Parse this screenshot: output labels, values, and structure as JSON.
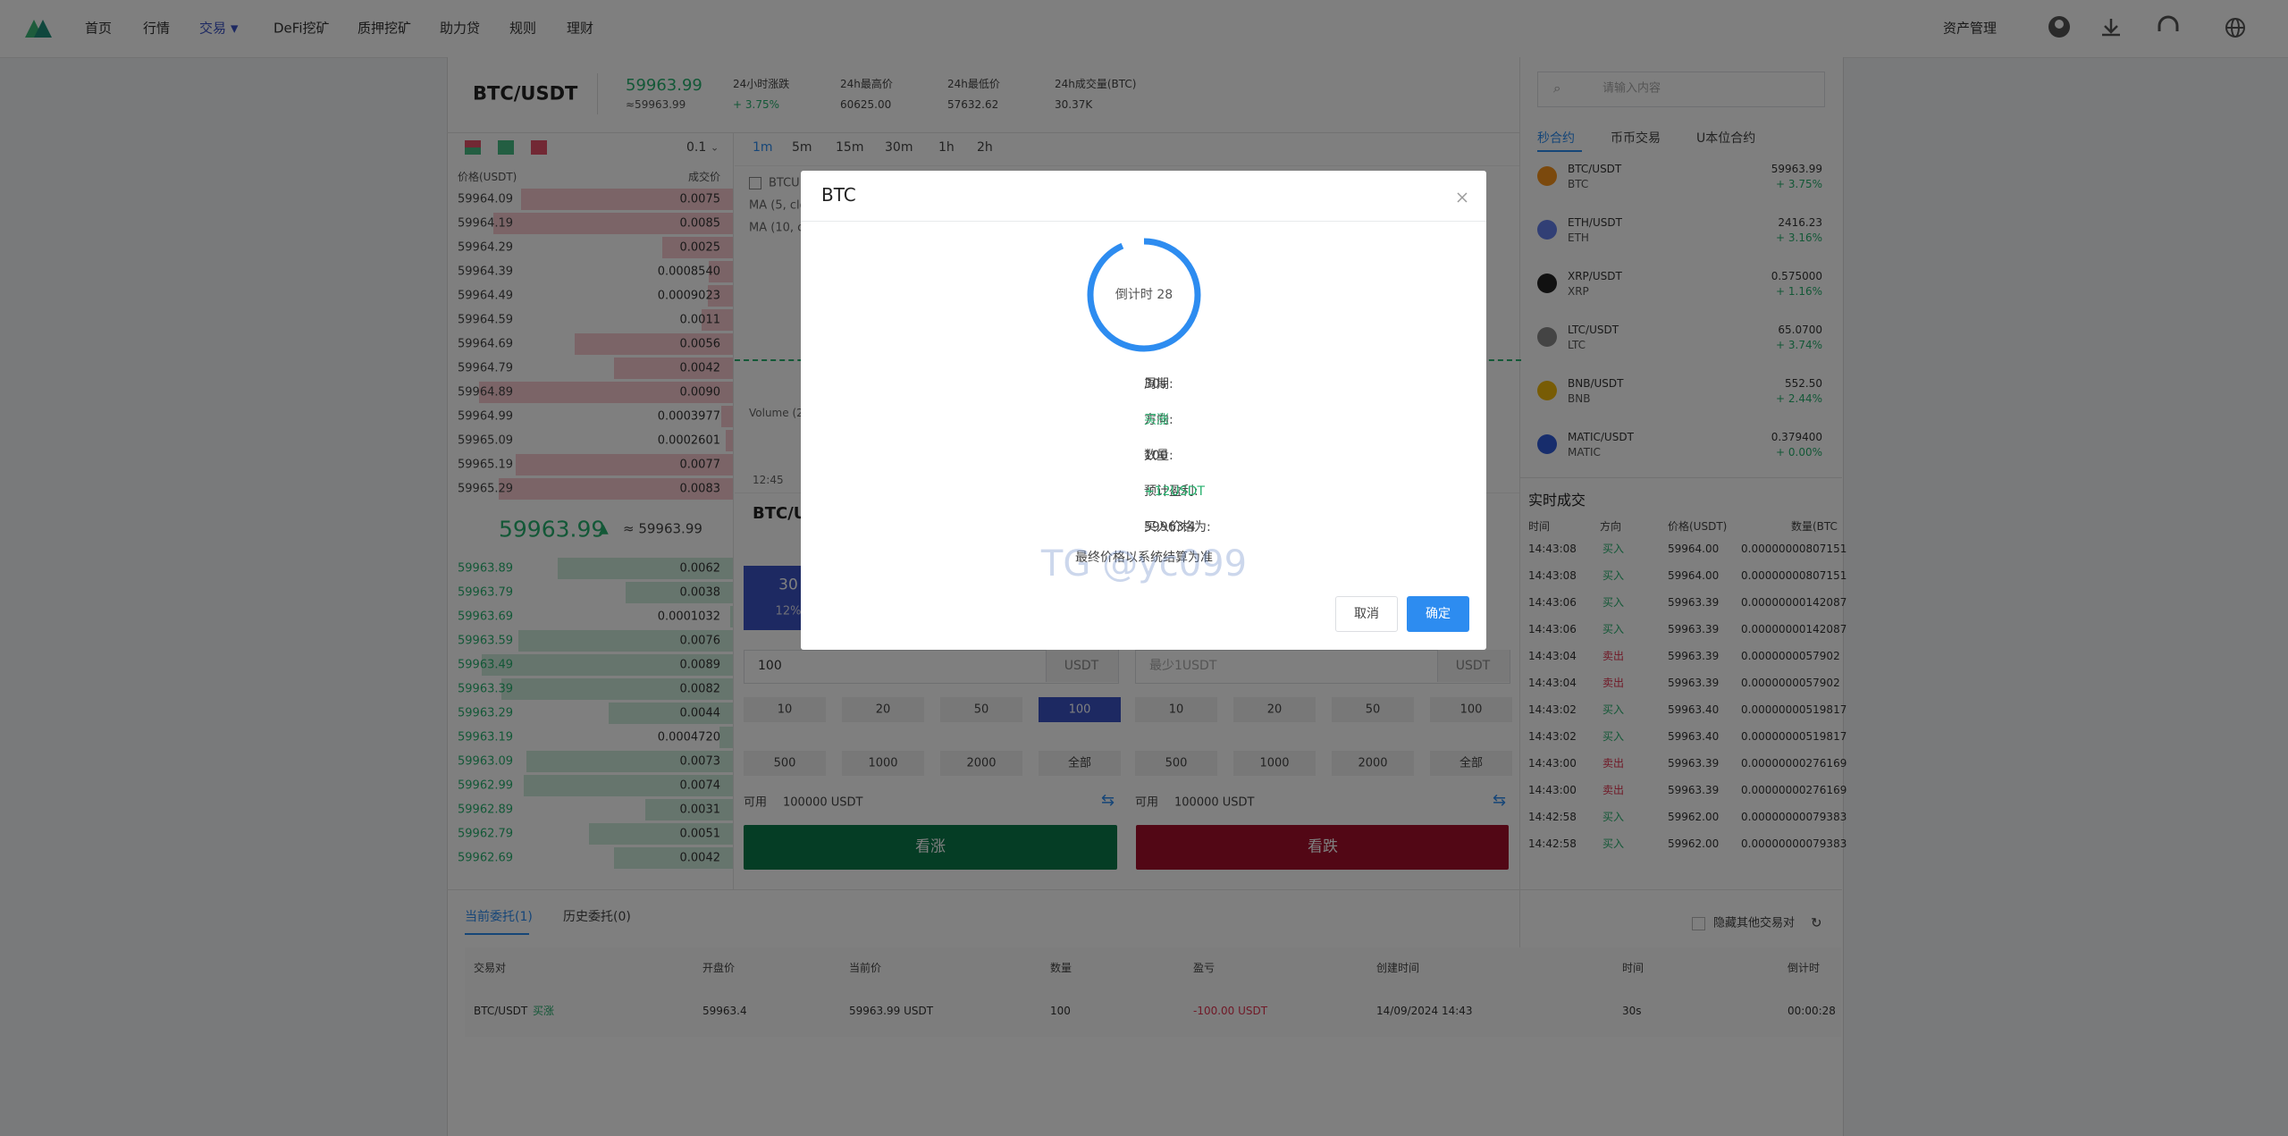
{
  "nav": {
    "items": [
      "首页",
      "行情",
      "交易",
      "DeFi挖矿",
      "质押挖矿",
      "助力贷",
      "规则",
      "理财"
    ],
    "asset": "资产管理"
  },
  "ticker": {
    "pair": "BTC/USDT",
    "price": "59963.99",
    "price_sub": "≈59963.99",
    "stats": [
      {
        "label": "24小时涨跌",
        "value": "+ 3.75%"
      },
      {
        "label": "24h最高价",
        "value": "60625.00"
      },
      {
        "label": "24h最低价",
        "value": "57632.62"
      },
      {
        "label": "24h成交量(BTC)",
        "value": "30.37K"
      }
    ]
  },
  "orderbook": {
    "precision": "0.1",
    "headers": [
      "价格(USDT)",
      "成交价"
    ],
    "asks": [
      [
        "59964.09",
        "0.0075"
      ],
      [
        "59964.19",
        "0.0085"
      ],
      [
        "59964.29",
        "0.0025"
      ],
      [
        "59964.39",
        "0.0008540"
      ],
      [
        "59964.49",
        "0.0009023"
      ],
      [
        "59964.59",
        "0.0011"
      ],
      [
        "59964.69",
        "0.0056"
      ],
      [
        "59964.79",
        "0.0042"
      ],
      [
        "59964.89",
        "0.0090"
      ],
      [
        "59964.99",
        "0.0003977"
      ],
      [
        "59965.09",
        "0.0002601"
      ],
      [
        "59965.19",
        "0.0077"
      ],
      [
        "59965.29",
        "0.0083"
      ]
    ],
    "last_price": "59963.99",
    "last_price_sub": "≈ 59963.99",
    "bids": [
      [
        "59963.89",
        "0.0062"
      ],
      [
        "59963.79",
        "0.0038"
      ],
      [
        "59963.69",
        "0.0001032"
      ],
      [
        "59963.59",
        "0.0076"
      ],
      [
        "59963.49",
        "0.0089"
      ],
      [
        "59963.39",
        "0.0082"
      ],
      [
        "59963.29",
        "0.0044"
      ],
      [
        "59963.19",
        "0.0004720"
      ],
      [
        "59963.09",
        "0.0073"
      ],
      [
        "59962.99",
        "0.0074"
      ],
      [
        "59962.89",
        "0.0031"
      ],
      [
        "59962.79",
        "0.0051"
      ],
      [
        "59962.69",
        "0.0042"
      ]
    ]
  },
  "chart": {
    "intervals": [
      "1m",
      "5m",
      "15m",
      "30m",
      "1h",
      "2h"
    ],
    "legend": [
      "BTCU",
      "MA (5, clo",
      "MA (10, cl"
    ],
    "volume": "Volume (2",
    "time": "12:45"
  },
  "trade": {
    "title": "BTC/U",
    "period": "30",
    "period_rate": "12%",
    "amount": "100",
    "unit": "USDT",
    "placeholder": "最少1USDT",
    "quick": [
      "10",
      "20",
      "50",
      "100",
      "500",
      "1000",
      "2000",
      "全部"
    ],
    "available_label": "可用",
    "available": "100000 USDT",
    "buy": "看涨",
    "sell": "看跌"
  },
  "markets": {
    "search": "请输入内容",
    "tabs": [
      "秒合约",
      "币币交易",
      "U本位合约"
    ],
    "rows": [
      {
        "pair": "BTC/USDT",
        "base": "BTC",
        "price": "59963.99",
        "change": "+ 3.75%"
      },
      {
        "pair": "ETH/USDT",
        "base": "ETH",
        "price": "2416.23",
        "change": "+ 3.16%"
      },
      {
        "pair": "XRP/USDT",
        "base": "XRP",
        "price": "0.575000",
        "change": "+ 1.16%"
      },
      {
        "pair": "LTC/USDT",
        "base": "LTC",
        "price": "65.0700",
        "change": "+ 3.74%"
      },
      {
        "pair": "BNB/USDT",
        "base": "BNB",
        "price": "552.50",
        "change": "+ 2.44%"
      },
      {
        "pair": "MATIC/USDT",
        "base": "MATIC",
        "price": "0.379400",
        "change": "+ 0.00%"
      }
    ]
  },
  "trades": {
    "title": "实时成交",
    "headers": [
      "时间",
      "方向",
      "价格(USDT)",
      "数量(BTC"
    ],
    "rows": [
      [
        "14:43:08",
        "买入",
        "59964.00",
        "0.00000000807151"
      ],
      [
        "14:43:08",
        "买入",
        "59964.00",
        "0.00000000807151"
      ],
      [
        "14:43:06",
        "买入",
        "59963.39",
        "0.00000000142087"
      ],
      [
        "14:43:06",
        "买入",
        "59963.39",
        "0.00000000142087"
      ],
      [
        "14:43:04",
        "卖出",
        "59963.39",
        "0.0000000057902"
      ],
      [
        "14:43:04",
        "卖出",
        "59963.39",
        "0.0000000057902"
      ],
      [
        "14:43:02",
        "买入",
        "59963.40",
        "0.00000000519817"
      ],
      [
        "14:43:02",
        "买入",
        "59963.40",
        "0.00000000519817"
      ],
      [
        "14:43:00",
        "卖出",
        "59963.39",
        "0.00000000276169"
      ],
      [
        "14:43:00",
        "卖出",
        "59963.39",
        "0.00000000276169"
      ],
      [
        "14:42:58",
        "买入",
        "59962.00",
        "0.00000000079383"
      ],
      [
        "14:42:58",
        "买入",
        "59962.00",
        "0.00000000079383"
      ]
    ]
  },
  "orders": {
    "tabs": [
      "当前委托(1)",
      "历史委托(0)"
    ],
    "hide_others": "隐藏其他交易对",
    "headers": [
      "交易对",
      "开盘价",
      "当前价",
      "数量",
      "盈亏",
      "创建时间",
      "时间",
      "倒计时"
    ],
    "row": {
      "pair": "BTC/USDT",
      "direction": "买涨",
      "open": "59963.4",
      "current": "59963.99 USDT",
      "amount": "100",
      "pnl": "-100.00 USDT",
      "created": "14/09/2024 14:43",
      "period": "30s",
      "countdown": "00:00:28"
    }
  },
  "modal": {
    "title": "BTC",
    "countdown": "倒计时 28",
    "lines": [
      {
        "label": "周期:",
        "value": "30s"
      },
      {
        "label": "方向:",
        "value": "买涨"
      },
      {
        "label": "数量:",
        "value": "100"
      },
      {
        "label": "预计盈利:",
        "value": "+12USDT"
      },
      {
        "label": "买入价格为:",
        "value": "59963.4"
      }
    ],
    "note": "最终价格以系统结算为准",
    "watermark": "TG @yc099",
    "cancel": "取消",
    "confirm": "确定"
  }
}
